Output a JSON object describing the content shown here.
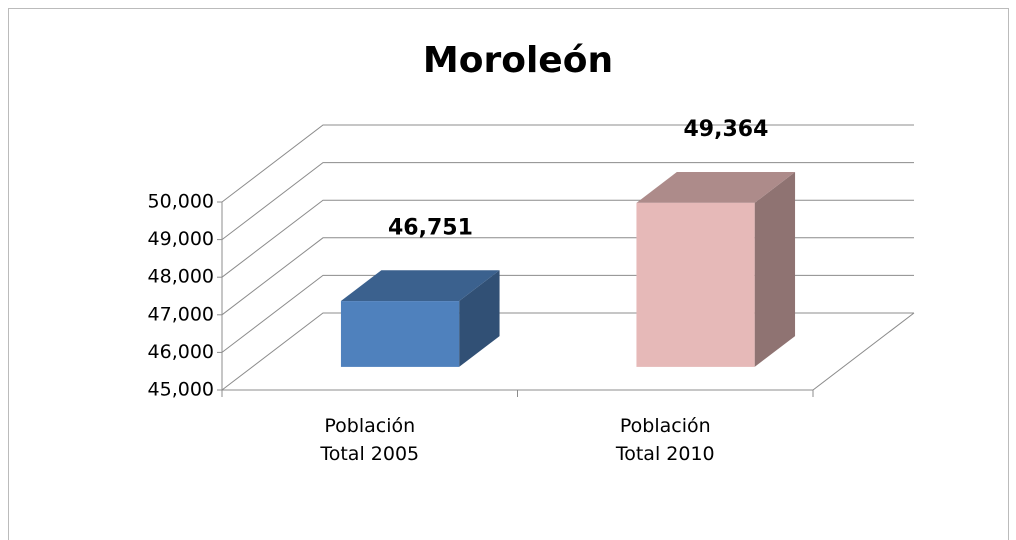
{
  "chart_data": {
    "type": "bar3d",
    "title": "Moroleón",
    "categories": [
      "Población Total 2005",
      "Población Total 2010"
    ],
    "values": [
      46751,
      49364
    ],
    "value_labels": [
      "46,751",
      "49,364"
    ],
    "colors": [
      "#4f81bd",
      "#e6b9b8"
    ],
    "ylim": [
      45000,
      50000
    ],
    "yticks": [
      {
        "value": 45000,
        "label": "45,000"
      },
      {
        "value": 46000,
        "label": "46,000"
      },
      {
        "value": 47000,
        "label": "47,000"
      },
      {
        "value": 48000,
        "label": "48,000"
      },
      {
        "value": 49000,
        "label": "49,000"
      },
      {
        "value": 50000,
        "label": "50,000"
      }
    ],
    "grid": true
  }
}
